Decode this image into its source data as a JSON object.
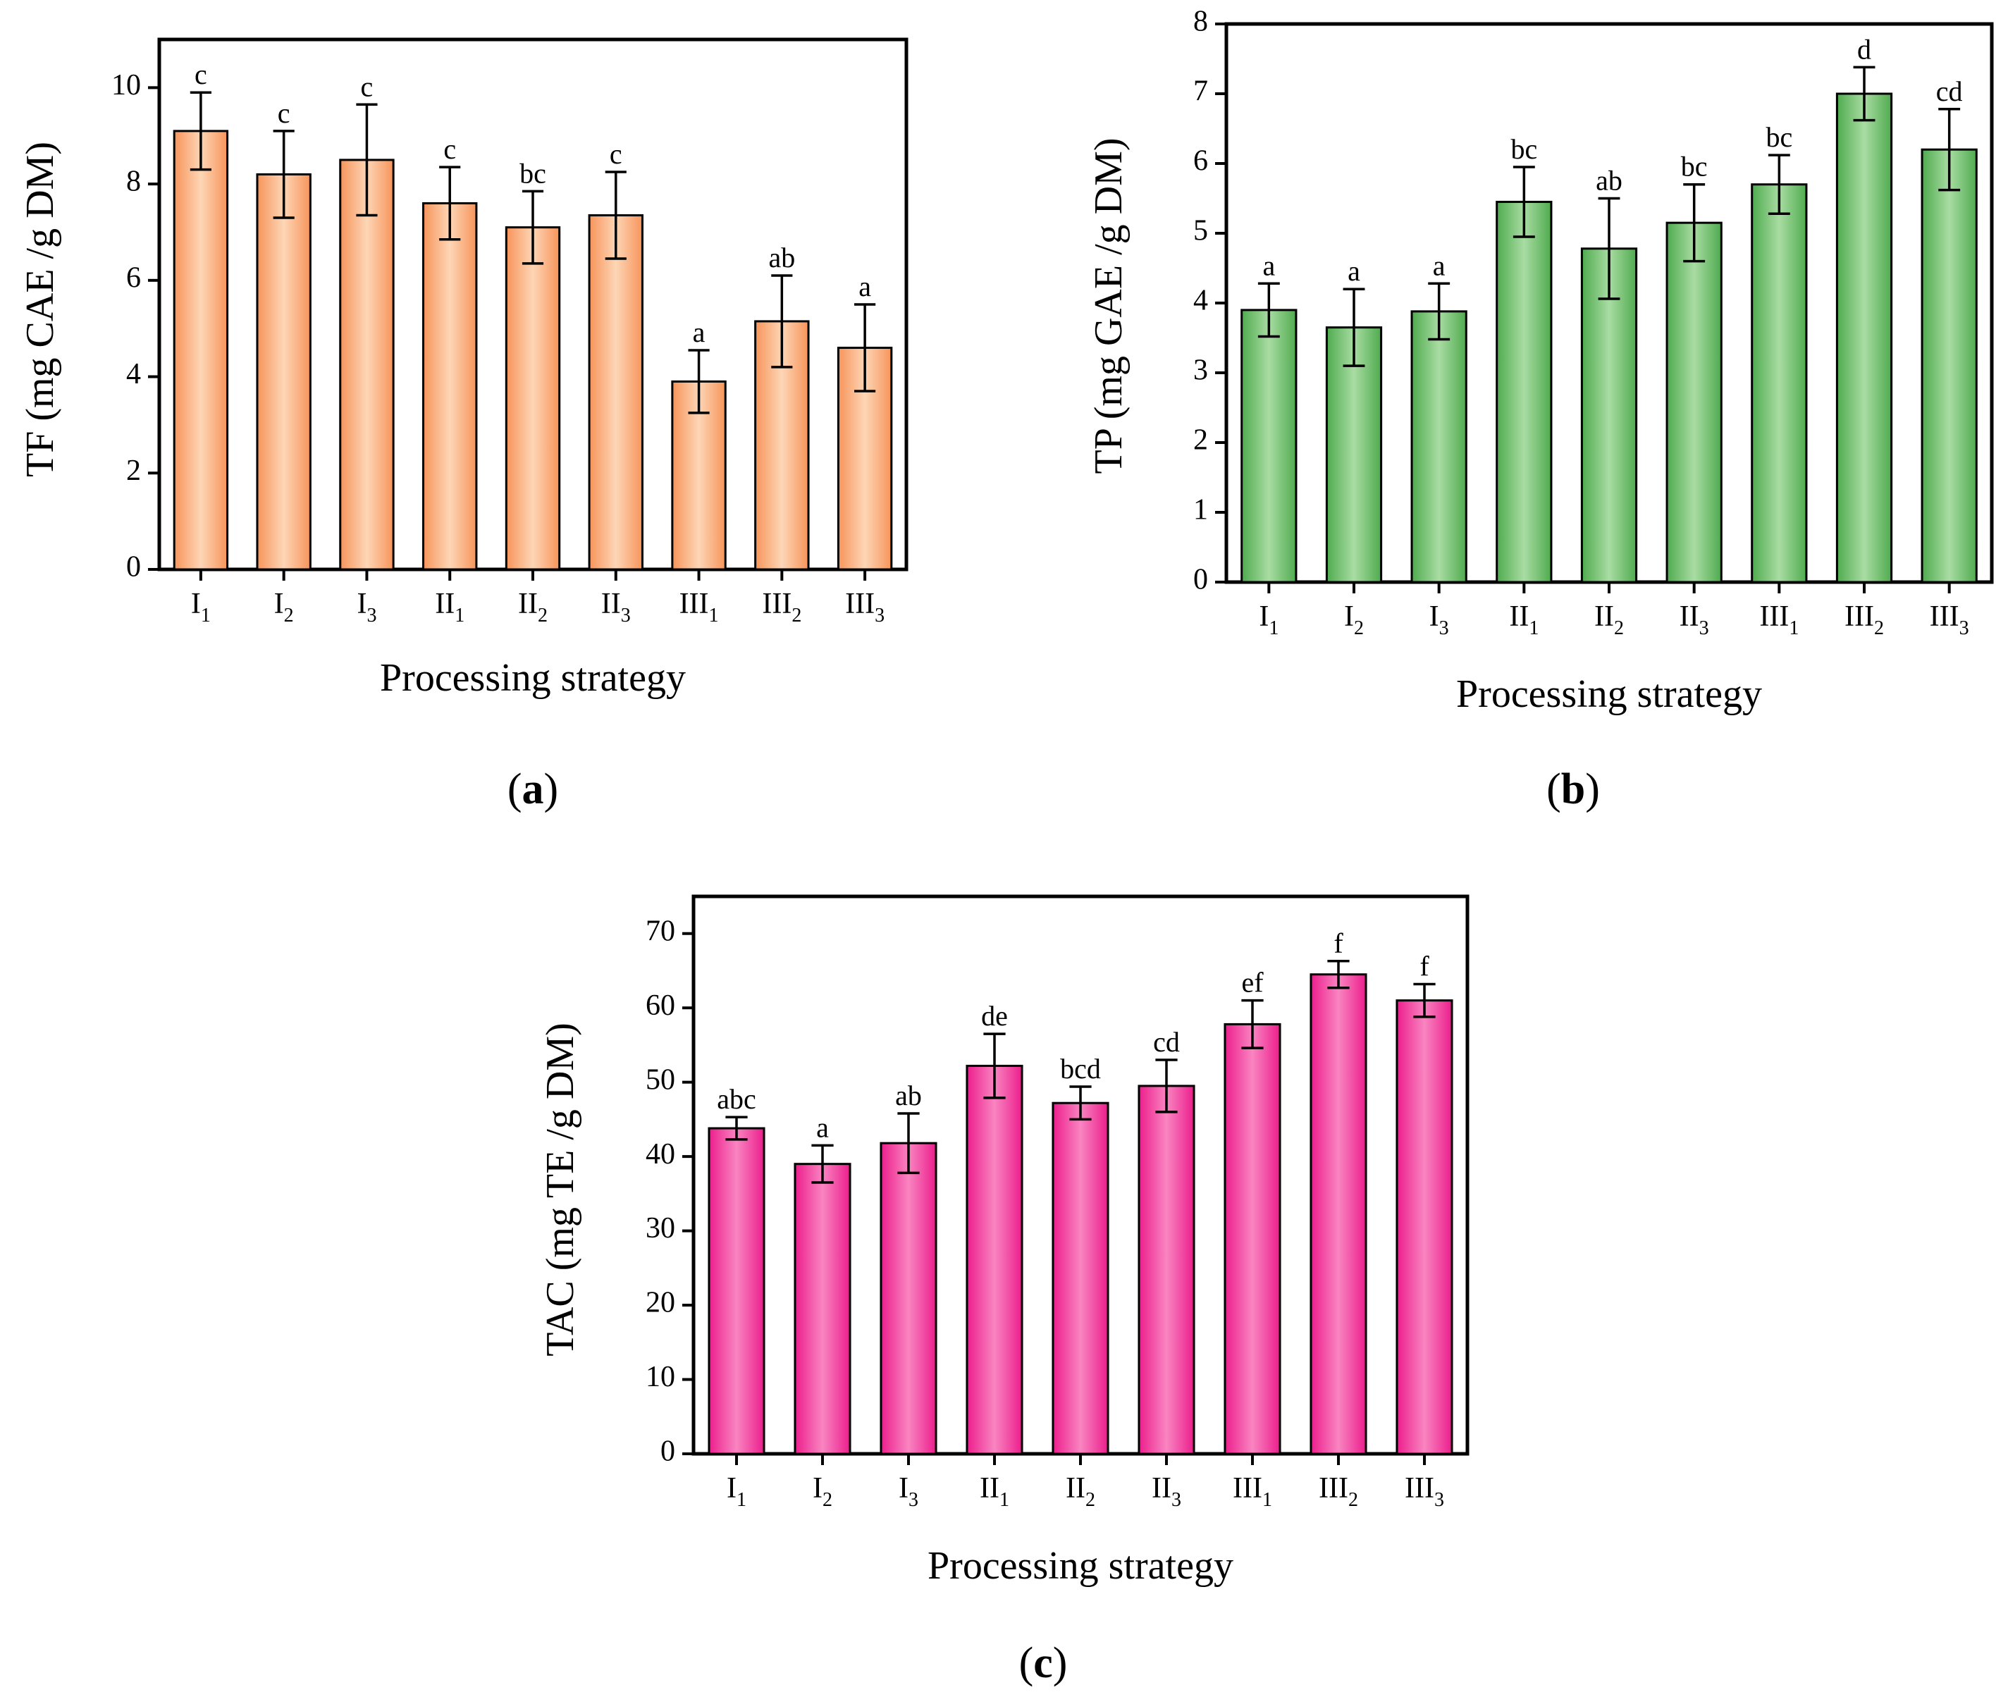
{
  "chart_data": [
    {
      "type": "bar",
      "panel_label": "a",
      "categories": [
        {
          "base": "I",
          "sub": "1"
        },
        {
          "base": "I",
          "sub": "2"
        },
        {
          "base": "I",
          "sub": "3"
        },
        {
          "base": "II",
          "sub": "1"
        },
        {
          "base": "II",
          "sub": "2"
        },
        {
          "base": "II",
          "sub": "3"
        },
        {
          "base": "III",
          "sub": "1"
        },
        {
          "base": "III",
          "sub": "2"
        },
        {
          "base": "III",
          "sub": "3"
        }
      ],
      "values": [
        9.1,
        8.2,
        8.5,
        7.6,
        7.1,
        7.35,
        3.9,
        5.15,
        4.6
      ],
      "errors": [
        0.8,
        0.9,
        1.15,
        0.75,
        0.75,
        0.9,
        0.65,
        0.95,
        0.9
      ],
      "significance": [
        "c",
        "c",
        "c",
        "c",
        "bc",
        "c",
        "a",
        "ab",
        "a"
      ],
      "xlabel": "Processing strategy",
      "ylabel": "TF (mg CAE /g DM)",
      "ylim": [
        0,
        11
      ],
      "yticks": [
        0,
        2,
        4,
        6,
        8,
        10
      ],
      "color": "#f7945a",
      "color_light": "#fdd6b6"
    },
    {
      "type": "bar",
      "panel_label": "b",
      "categories": [
        {
          "base": "I",
          "sub": "1"
        },
        {
          "base": "I",
          "sub": "2"
        },
        {
          "base": "I",
          "sub": "3"
        },
        {
          "base": "II",
          "sub": "1"
        },
        {
          "base": "II",
          "sub": "2"
        },
        {
          "base": "II",
          "sub": "3"
        },
        {
          "base": "III",
          "sub": "1"
        },
        {
          "base": "III",
          "sub": "2"
        },
        {
          "base": "III",
          "sub": "3"
        }
      ],
      "values": [
        3.9,
        3.65,
        3.88,
        5.45,
        4.78,
        5.15,
        5.7,
        7.0,
        6.2
      ],
      "errors": [
        0.38,
        0.55,
        0.4,
        0.5,
        0.72,
        0.55,
        0.42,
        0.38,
        0.58
      ],
      "significance": [
        "a",
        "a",
        "a",
        "bc",
        "ab",
        "bc",
        "bc",
        "d",
        "cd"
      ],
      "xlabel": "Processing strategy",
      "ylabel": "TP (mg GAE /g DM)",
      "ylim": [
        0,
        8
      ],
      "yticks": [
        0,
        1,
        2,
        3,
        4,
        5,
        6,
        7,
        8
      ],
      "color": "#4fab4f",
      "color_light": "#a9dca3"
    },
    {
      "type": "bar",
      "panel_label": "c",
      "categories": [
        {
          "base": "I",
          "sub": "1"
        },
        {
          "base": "I",
          "sub": "2"
        },
        {
          "base": "I",
          "sub": "3"
        },
        {
          "base": "II",
          "sub": "1"
        },
        {
          "base": "II",
          "sub": "2"
        },
        {
          "base": "II",
          "sub": "3"
        },
        {
          "base": "III",
          "sub": "1"
        },
        {
          "base": "III",
          "sub": "2"
        },
        {
          "base": "III",
          "sub": "3"
        }
      ],
      "values": [
        43.8,
        39.0,
        41.8,
        52.2,
        47.2,
        49.5,
        57.8,
        64.5,
        61.0
      ],
      "errors": [
        1.5,
        2.5,
        4.0,
        4.3,
        2.2,
        3.5,
        3.2,
        1.8,
        2.2
      ],
      "significance": [
        "abc",
        "a",
        "ab",
        "de",
        "bcd",
        "cd",
        "ef",
        "f",
        "f"
      ],
      "xlabel": "Processing strategy",
      "ylabel": "TAC (mg TE /g DM)",
      "ylim": [
        0,
        75
      ],
      "yticks": [
        0,
        10,
        20,
        30,
        40,
        50,
        60,
        70
      ],
      "color": "#ec1e8c",
      "color_light": "#f985c1"
    }
  ]
}
